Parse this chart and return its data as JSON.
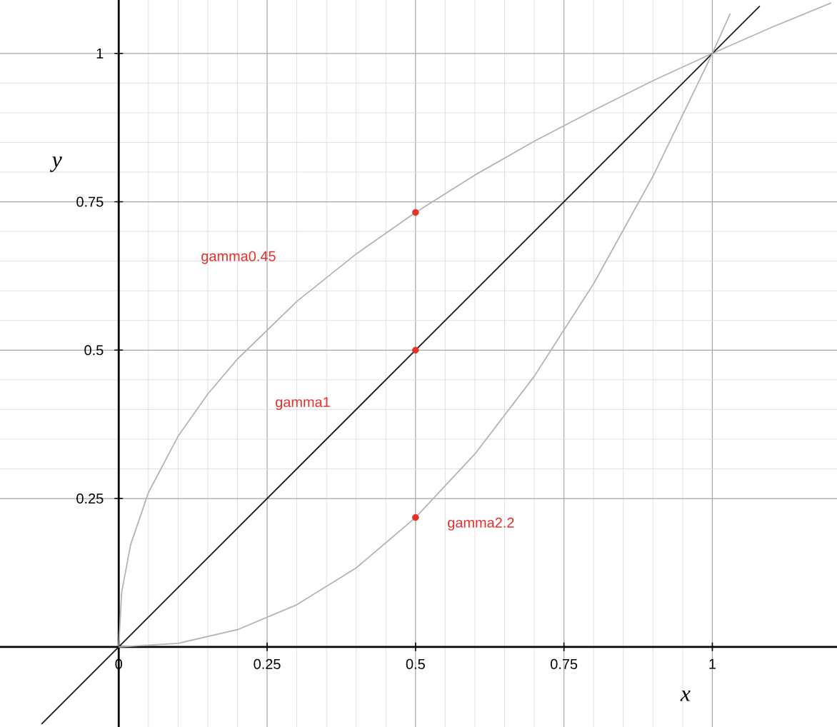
{
  "chart_data": {
    "type": "line",
    "xlabel": "x",
    "ylabel": "y",
    "xlim": [
      -0.2,
      1.21
    ],
    "ylim": [
      -0.135,
      1.09
    ],
    "xticks": [
      0,
      0.25,
      0.5,
      0.75,
      1
    ],
    "yticks": [
      0.25,
      0.5,
      0.75,
      1
    ],
    "grid": true,
    "series": [
      {
        "color": "#b4b4b4",
        "x": [
          0,
          0.005,
          0.02,
          0.05,
          0.1,
          0.15,
          0.2,
          0.3,
          0.4,
          0.5,
          0.6,
          0.7,
          0.8,
          0.9,
          1,
          1.1,
          1.2
        ],
        "values": [
          0,
          0.092,
          0.172,
          0.26,
          0.355,
          0.426,
          0.485,
          0.582,
          0.662,
          0.732,
          0.795,
          0.852,
          0.904,
          0.954,
          1,
          1.044,
          1.085
        ]
      },
      {
        "color": "#1a1a1a",
        "x": [
          -0.13,
          0,
          0.5,
          1,
          1.08
        ],
        "values": [
          -0.13,
          0,
          0.5,
          1,
          1.08
        ]
      },
      {
        "color": "#b4b4b4",
        "x": [
          0,
          0.1,
          0.2,
          0.3,
          0.4,
          0.5,
          0.6,
          0.7,
          0.8,
          0.9,
          1,
          1.03
        ],
        "values": [
          0,
          0.006,
          0.029,
          0.071,
          0.133,
          0.218,
          0.325,
          0.456,
          0.612,
          0.793,
          1,
          1.067
        ]
      },
      {
        "type": "scatter",
        "color": "#e8302a",
        "marker": "circle",
        "x": [
          0.5,
          0.5,
          0.5
        ],
        "values": [
          0.732,
          0.5,
          0.218
        ]
      }
    ],
    "annotations": [
      "gamma0.45",
      "gamma1",
      "gamma2.2"
    ]
  }
}
